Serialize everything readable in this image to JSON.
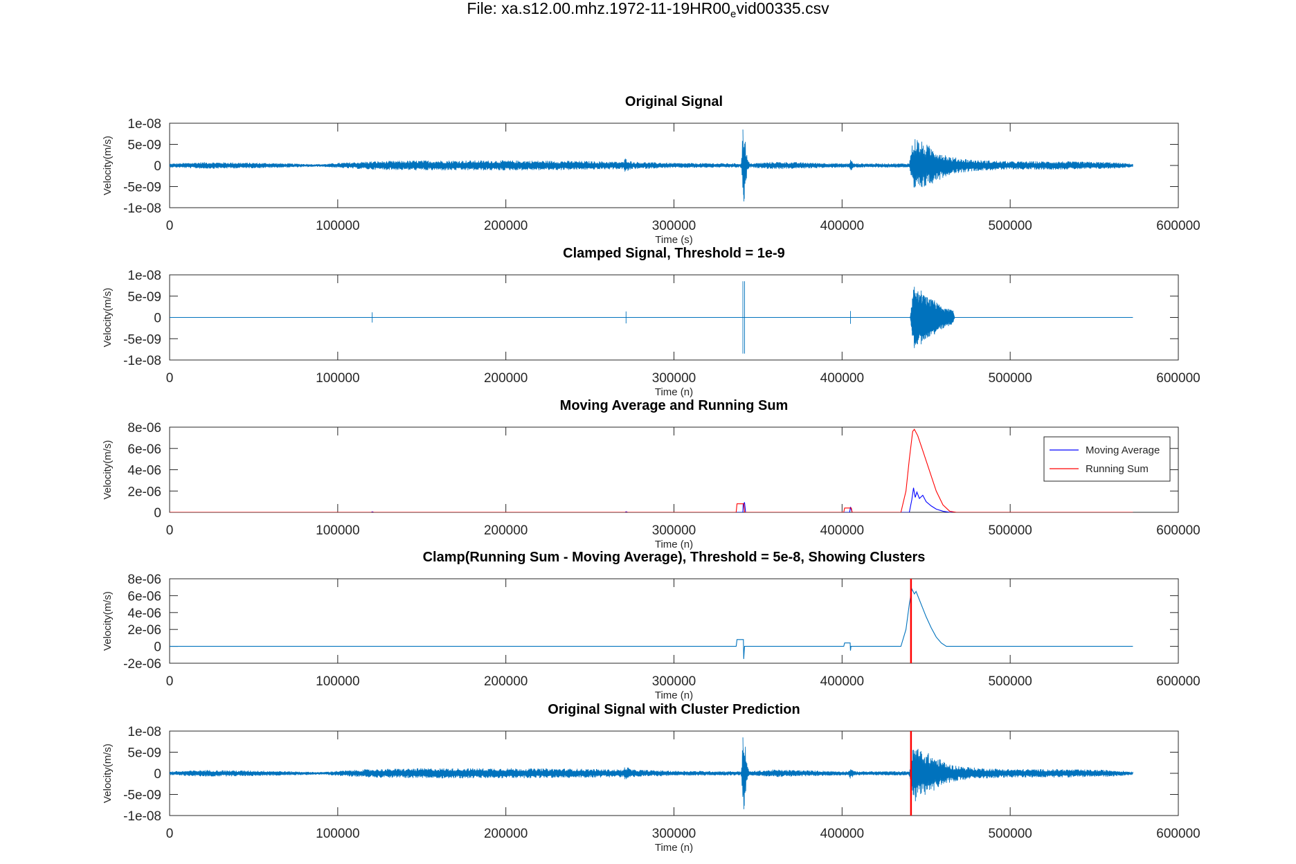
{
  "figure_title_prefix": "File: xa.s12.00.mhz.1972-11-19HR00",
  "figure_title_sub": "e",
  "figure_title_suffix": "vid00335.csv",
  "colors": {
    "signal": "#0072BD",
    "moving_average": "#0000FF",
    "running_sum": "#FF0000",
    "cluster_line": "#FF0000",
    "axis": "#262626"
  },
  "chart_data": [
    {
      "type": "line",
      "title": "Original Signal",
      "xlabel": "Time (s)",
      "ylabel": "Velocity(m/s)",
      "xlim": [
        0,
        600000
      ],
      "ylim": [
        -1e-08,
        1e-08
      ],
      "xticks": [
        "0",
        "100000",
        "200000",
        "300000",
        "400000",
        "500000",
        "600000"
      ],
      "yticks": [
        "1e-08",
        "5e-09",
        "0",
        "-5e-09",
        "-1e-08"
      ],
      "series": [
        {
          "color": "#0072BD",
          "kind": "signal",
          "envelope": [
            [
              0,
              0.45
            ],
            [
              20000,
              0.8
            ],
            [
              60000,
              0.6
            ],
            [
              90000,
              0.3
            ],
            [
              100000,
              0.6
            ],
            [
              120000,
              1.0
            ],
            [
              150000,
              1.2
            ],
            [
              200000,
              1.2
            ],
            [
              240000,
              1.1
            ],
            [
              270000,
              0.9
            ],
            [
              271000,
              1.8
            ],
            [
              275000,
              0.9
            ],
            [
              300000,
              0.6
            ],
            [
              340000,
              0.5
            ],
            [
              341000,
              8.5
            ],
            [
              342000,
              -8.5
            ],
            [
              343500,
              2.0
            ],
            [
              345000,
              0.5
            ],
            [
              360000,
              0.9
            ],
            [
              400000,
              0.5
            ],
            [
              404000,
              0.5
            ],
            [
              405000,
              1.5
            ],
            [
              407000,
              0.5
            ],
            [
              440000,
              0.5
            ],
            [
              441000,
              4.0
            ],
            [
              443000,
              7.0
            ],
            [
              446000,
              6.0
            ],
            [
              455000,
              4.0
            ],
            [
              465000,
              2.0
            ],
            [
              480000,
              1.3
            ],
            [
              500000,
              1.0
            ],
            [
              530000,
              1.0
            ],
            [
              560000,
              0.8
            ],
            [
              573000,
              0.4
            ]
          ],
          "x_end": 573000
        }
      ],
      "cluster_x": null
    },
    {
      "type": "line",
      "title": "Clamped Signal, Threshold = 1e-9",
      "xlabel": "Time (n)",
      "ylabel": "Velocity(m/s)",
      "xlim": [
        0,
        600000
      ],
      "ylim": [
        -1e-08,
        1e-08
      ],
      "xticks": [
        "0",
        "100000",
        "200000",
        "300000",
        "400000",
        "500000",
        "600000"
      ],
      "yticks": [
        "1e-08",
        "5e-09",
        "0",
        "-5e-09",
        "-1e-08"
      ],
      "series": [
        {
          "color": "#0072BD",
          "kind": "clamped",
          "spikes": [
            [
              120500,
              1.2
            ],
            [
              271500,
              1.4
            ],
            [
              341000,
              8.5
            ],
            [
              342000,
              -8.5
            ],
            [
              405000,
              1.5
            ],
            [
              443000,
              7.2
            ],
            [
              447000,
              6.3
            ],
            [
              455000,
              4.0
            ],
            [
              462000,
              1.8
            ]
          ],
          "burst": [
            [
              440500,
              0
            ],
            [
              442500,
              7.0
            ],
            [
              446000,
              6.0
            ],
            [
              452000,
              4.5
            ],
            [
              460000,
              2.6
            ],
            [
              466000,
              1.6
            ],
            [
              467000,
              0
            ]
          ],
          "x_end": 573000
        }
      ],
      "cluster_x": null
    },
    {
      "type": "line",
      "title": "Moving Average and Running Sum",
      "xlabel": "Time (n)",
      "ylabel": "Velocity(m/s)",
      "xlim": [
        0,
        600000
      ],
      "ylim": [
        0,
        8e-06
      ],
      "xticks": [
        "0",
        "100000",
        "200000",
        "300000",
        "400000",
        "500000",
        "600000"
      ],
      "yticks": [
        "8e-06",
        "6e-06",
        "4e-06",
        "2e-06",
        "0"
      ],
      "legend": [
        "Moving Average",
        "Running Sum"
      ],
      "legend_position": "top-right",
      "series": [
        {
          "name": "Moving Average",
          "color": "#0000FF",
          "points": [
            [
              0,
              0
            ],
            [
              120000,
              0
            ],
            [
              120500,
              5e-08
            ],
            [
              121500,
              0
            ],
            [
              271000,
              0
            ],
            [
              271500,
              6e-08
            ],
            [
              272500,
              0
            ],
            [
              341000,
              0
            ],
            [
              341200,
              8e-07
            ],
            [
              342000,
              9e-07
            ],
            [
              342600,
              0
            ],
            [
              404500,
              0
            ],
            [
              405000,
              5e-07
            ],
            [
              406000,
              0
            ],
            [
              440000,
              0
            ],
            [
              441500,
              1.2e-06
            ],
            [
              442500,
              2.3e-06
            ],
            [
              443500,
              1.4e-06
            ],
            [
              444500,
              1.9e-06
            ],
            [
              446000,
              1.3e-06
            ],
            [
              448000,
              1.6e-06
            ],
            [
              450000,
              1e-06
            ],
            [
              453000,
              6e-07
            ],
            [
              456000,
              3e-07
            ],
            [
              460000,
              1e-07
            ],
            [
              464000,
              0
            ],
            [
              573000,
              0
            ]
          ]
        },
        {
          "name": "Running Sum",
          "color": "#FF0000",
          "points": [
            [
              0,
              0
            ],
            [
              337000,
              0
            ],
            [
              337500,
              8e-07
            ],
            [
              341500,
              8e-07
            ],
            [
              342000,
              0
            ],
            [
              401000,
              0
            ],
            [
              401500,
              4e-07
            ],
            [
              405500,
              4e-07
            ],
            [
              406000,
              0
            ],
            [
              435000,
              0
            ],
            [
              438000,
              2e-06
            ],
            [
              440000,
              5e-06
            ],
            [
              442000,
              7.6e-06
            ],
            [
              443000,
              7.8e-06
            ],
            [
              445000,
              7.2e-06
            ],
            [
              448000,
              5.8e-06
            ],
            [
              452000,
              3.9e-06
            ],
            [
              456000,
              2e-06
            ],
            [
              460000,
              7e-07
            ],
            [
              464000,
              1e-07
            ],
            [
              468000,
              0
            ],
            [
              573000,
              0
            ]
          ]
        }
      ],
      "cluster_x": null
    },
    {
      "type": "line",
      "title": "Clamp(Running Sum - Moving Average), Threshold = 5e-8, Showing Clusters",
      "xlabel": "Time (n)",
      "ylabel": "Velocity(m/s)",
      "xlim": [
        0,
        600000
      ],
      "ylim": [
        -2e-06,
        8e-06
      ],
      "xticks": [
        "0",
        "100000",
        "200000",
        "300000",
        "400000",
        "500000",
        "600000"
      ],
      "yticks": [
        "8e-06",
        "6e-06",
        "4e-06",
        "2e-06",
        "0",
        "-2e-06"
      ],
      "series": [
        {
          "color": "#0072BD",
          "points": [
            [
              0,
              0
            ],
            [
              337000,
              0
            ],
            [
              337500,
              8e-07
            ],
            [
              341300,
              8e-07
            ],
            [
              341500,
              -1.5e-06
            ],
            [
              341800,
              -5e-07
            ],
            [
              342000,
              0
            ],
            [
              401000,
              0
            ],
            [
              401500,
              4e-07
            ],
            [
              404800,
              4e-07
            ],
            [
              405000,
              -5e-07
            ],
            [
              405300,
              0
            ],
            [
              435000,
              0
            ],
            [
              438000,
              2e-06
            ],
            [
              440000,
              5e-06
            ],
            [
              441500,
              6.8e-06
            ],
            [
              443000,
              6.2e-06
            ],
            [
              444000,
              6.5e-06
            ],
            [
              446000,
              5.5e-06
            ],
            [
              448000,
              4.5e-06
            ],
            [
              450000,
              3.5e-06
            ],
            [
              453000,
              2.2e-06
            ],
            [
              456000,
              1.1e-06
            ],
            [
              459000,
              4e-07
            ],
            [
              462000,
              0
            ],
            [
              573000,
              0
            ]
          ]
        }
      ],
      "cluster_x": 441000
    },
    {
      "type": "line",
      "title": "Original Signal with Cluster Prediction",
      "xlabel": "Time (n)",
      "ylabel": "Velocity(m/s)",
      "xlim": [
        0,
        600000
      ],
      "ylim": [
        -1e-08,
        1e-08
      ],
      "xticks": [
        "0",
        "100000",
        "200000",
        "300000",
        "400000",
        "500000",
        "600000"
      ],
      "yticks": [
        "1e-08",
        "5e-09",
        "0",
        "-5e-09",
        "-1e-08"
      ],
      "series": [
        {
          "color": "#0072BD",
          "kind": "signal",
          "envelope": [
            [
              0,
              0.45
            ],
            [
              20000,
              0.8
            ],
            [
              60000,
              0.6
            ],
            [
              90000,
              0.3
            ],
            [
              100000,
              0.6
            ],
            [
              120000,
              1.0
            ],
            [
              150000,
              1.2
            ],
            [
              200000,
              1.2
            ],
            [
              240000,
              1.1
            ],
            [
              270000,
              0.9
            ],
            [
              271000,
              1.8
            ],
            [
              275000,
              0.9
            ],
            [
              300000,
              0.6
            ],
            [
              340000,
              0.5
            ],
            [
              341000,
              8.5
            ],
            [
              342000,
              -8.5
            ],
            [
              343500,
              2.0
            ],
            [
              345000,
              0.5
            ],
            [
              360000,
              0.9
            ],
            [
              400000,
              0.5
            ],
            [
              404000,
              0.5
            ],
            [
              405000,
              1.5
            ],
            [
              407000,
              0.5
            ],
            [
              440000,
              0.5
            ],
            [
              441000,
              4.0
            ],
            [
              443000,
              7.0
            ],
            [
              446000,
              6.0
            ],
            [
              455000,
              4.0
            ],
            [
              465000,
              2.0
            ],
            [
              480000,
              1.3
            ],
            [
              500000,
              1.0
            ],
            [
              530000,
              1.0
            ],
            [
              560000,
              0.8
            ],
            [
              573000,
              0.4
            ]
          ],
          "x_end": 573000
        }
      ],
      "cluster_x": 441000
    }
  ]
}
